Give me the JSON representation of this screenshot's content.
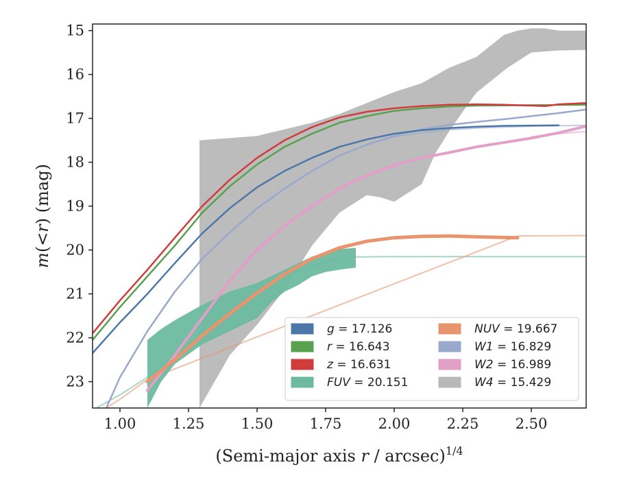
{
  "chart_data": {
    "type": "line",
    "xlabel": "(Semi-major axis r / arcsec)",
    "xlabel_sup": "1/4",
    "ylabel": "m(<r) (mag)",
    "xlim": [
      0.9,
      2.7
    ],
    "ylim": [
      23.6,
      14.85
    ],
    "y_inverted": true,
    "xticks": [
      "1.00",
      "1.25",
      "1.50",
      "1.75",
      "2.00",
      "2.25",
      "2.50"
    ],
    "yticks": [
      "15",
      "16",
      "17",
      "18",
      "19",
      "20",
      "21",
      "22",
      "23"
    ],
    "grid": false,
    "legend_position": "lower-right",
    "series": [
      {
        "band": "g",
        "value": "17.126",
        "color": "#4c78a8",
        "profile": [
          [
            0.9,
            22.35
          ],
          [
            1.0,
            21.65
          ],
          [
            1.1,
            21.0
          ],
          [
            1.2,
            20.3
          ],
          [
            1.3,
            19.62
          ],
          [
            1.4,
            19.05
          ],
          [
            1.5,
            18.57
          ],
          [
            1.6,
            18.2
          ],
          [
            1.7,
            17.9
          ],
          [
            1.8,
            17.65
          ],
          [
            1.9,
            17.48
          ],
          [
            2.0,
            17.35
          ],
          [
            2.1,
            17.27
          ],
          [
            2.2,
            17.22
          ],
          [
            2.3,
            17.19
          ],
          [
            2.4,
            17.17
          ],
          [
            2.6,
            17.16
          ]
        ],
        "model": [
          [
            2.6,
            17.16
          ],
          [
            2.7,
            17.15
          ]
        ]
      },
      {
        "band": "r",
        "value": "16.643",
        "color": "#59a14f",
        "profile": [
          [
            0.9,
            22.05
          ],
          [
            1.0,
            21.3
          ],
          [
            1.1,
            20.6
          ],
          [
            1.2,
            19.9
          ],
          [
            1.3,
            19.15
          ],
          [
            1.4,
            18.55
          ],
          [
            1.5,
            18.05
          ],
          [
            1.6,
            17.65
          ],
          [
            1.7,
            17.35
          ],
          [
            1.8,
            17.1
          ],
          [
            1.9,
            16.95
          ],
          [
            2.0,
            16.83
          ],
          [
            2.1,
            16.77
          ],
          [
            2.2,
            16.73
          ],
          [
            2.3,
            16.71
          ],
          [
            2.5,
            16.7
          ],
          [
            2.7,
            16.69
          ]
        ],
        "model": []
      },
      {
        "band": "z",
        "value": "16.631",
        "color": "#d03c3c",
        "profile": [
          [
            0.9,
            21.9
          ],
          [
            1.0,
            21.15
          ],
          [
            1.1,
            20.45
          ],
          [
            1.2,
            19.72
          ],
          [
            1.3,
            19.0
          ],
          [
            1.4,
            18.4
          ],
          [
            1.5,
            17.9
          ],
          [
            1.6,
            17.5
          ],
          [
            1.7,
            17.2
          ],
          [
            1.8,
            16.98
          ],
          [
            1.9,
            16.85
          ],
          [
            2.0,
            16.77
          ],
          [
            2.1,
            16.72
          ],
          [
            2.2,
            16.69
          ],
          [
            2.3,
            16.68
          ],
          [
            2.4,
            16.69
          ],
          [
            2.5,
            16.71
          ],
          [
            2.55,
            16.72
          ],
          [
            2.6,
            16.68
          ],
          [
            2.7,
            16.65
          ]
        ],
        "model": []
      },
      {
        "band": "FUV",
        "value": "20.151",
        "color": "#6cbb9f",
        "profile_lower": [
          [
            1.1,
            23.6
          ],
          [
            1.15,
            23.0
          ],
          [
            1.2,
            22.6
          ],
          [
            1.3,
            22.15
          ],
          [
            1.4,
            21.85
          ],
          [
            1.5,
            21.55
          ],
          [
            1.55,
            21.2
          ],
          [
            1.6,
            20.95
          ],
          [
            1.65,
            20.8
          ],
          [
            1.7,
            20.6
          ],
          [
            1.75,
            20.5
          ],
          [
            1.8,
            20.45
          ],
          [
            1.86,
            20.4
          ]
        ],
        "profile_upper": [
          [
            1.1,
            22.05
          ],
          [
            1.15,
            21.8
          ],
          [
            1.2,
            21.6
          ],
          [
            1.3,
            21.25
          ],
          [
            1.4,
            20.95
          ],
          [
            1.5,
            20.75
          ],
          [
            1.55,
            20.6
          ],
          [
            1.6,
            20.45
          ],
          [
            1.65,
            20.3
          ],
          [
            1.7,
            20.15
          ],
          [
            1.75,
            20.05
          ],
          [
            1.8,
            19.98
          ],
          [
            1.86,
            19.95
          ]
        ],
        "model": [
          [
            0.9,
            23.65
          ],
          [
            1.0,
            23.3
          ],
          [
            1.1,
            22.9
          ],
          [
            1.2,
            22.4
          ],
          [
            1.3,
            21.9
          ],
          [
            1.4,
            21.4
          ],
          [
            1.5,
            20.95
          ],
          [
            1.6,
            20.6
          ],
          [
            1.7,
            20.35
          ],
          [
            1.8,
            20.2
          ],
          [
            1.86,
            20.16
          ],
          [
            2.0,
            20.15
          ],
          [
            2.7,
            20.15
          ]
        ]
      },
      {
        "band": "NUV",
        "value": "19.667",
        "color": "#e8946f",
        "profile": [
          [
            1.1,
            23.0
          ],
          [
            1.2,
            22.5
          ],
          [
            1.3,
            21.95
          ],
          [
            1.4,
            21.45
          ],
          [
            1.5,
            20.98
          ],
          [
            1.6,
            20.55
          ],
          [
            1.7,
            20.2
          ],
          [
            1.8,
            19.95
          ],
          [
            1.9,
            19.8
          ],
          [
            2.0,
            19.72
          ],
          [
            2.1,
            19.69
          ],
          [
            2.2,
            19.68
          ],
          [
            2.3,
            19.7
          ],
          [
            2.45,
            19.72
          ]
        ],
        "model": [
          [
            0.95,
            23.6
          ],
          [
            1.0,
            23.4
          ],
          [
            1.1,
            22.95
          ],
          [
            2.45,
            19.68
          ],
          [
            2.7,
            19.67
          ]
        ]
      },
      {
        "band": "W1",
        "value": "16.829",
        "color": "#99a8cc",
        "profile": [
          [
            0.95,
            23.6
          ],
          [
            1.0,
            22.9
          ],
          [
            1.1,
            21.85
          ],
          [
            1.2,
            20.95
          ],
          [
            1.3,
            20.2
          ],
          [
            1.4,
            19.6
          ],
          [
            1.5,
            19.05
          ],
          [
            1.6,
            18.6
          ],
          [
            1.7,
            18.2
          ],
          [
            1.8,
            17.85
          ],
          [
            1.9,
            17.6
          ],
          [
            2.0,
            17.4
          ],
          [
            2.1,
            17.25
          ],
          [
            2.2,
            17.15
          ],
          [
            2.3,
            17.08
          ],
          [
            2.4,
            17.02
          ],
          [
            2.5,
            16.95
          ],
          [
            2.6,
            16.88
          ],
          [
            2.7,
            16.8
          ]
        ],
        "model": [
          [
            1.9,
            17.6
          ],
          [
            2.0,
            17.42
          ],
          [
            2.1,
            17.33
          ],
          [
            2.2,
            17.26
          ],
          [
            2.3,
            17.22
          ],
          [
            2.5,
            17.18
          ],
          [
            2.7,
            17.16
          ]
        ]
      },
      {
        "band": "W2",
        "value": "16.989",
        "color": "#e29fc8",
        "profile": [
          [
            1.1,
            23.2
          ],
          [
            1.2,
            22.4
          ],
          [
            1.3,
            21.55
          ],
          [
            1.4,
            20.7
          ],
          [
            1.5,
            20.0
          ],
          [
            1.6,
            19.45
          ],
          [
            1.7,
            19.0
          ],
          [
            1.8,
            18.6
          ],
          [
            1.9,
            18.3
          ],
          [
            2.0,
            18.07
          ],
          [
            2.1,
            17.9
          ],
          [
            2.2,
            17.78
          ],
          [
            2.3,
            17.65
          ],
          [
            2.4,
            17.55
          ],
          [
            2.5,
            17.45
          ],
          [
            2.6,
            17.33
          ],
          [
            2.7,
            17.18
          ]
        ],
        "model": [
          [
            2.5,
            17.42
          ],
          [
            2.6,
            17.35
          ],
          [
            2.7,
            17.3
          ]
        ]
      },
      {
        "band": "W4",
        "value": "15.429",
        "color": "#b8b8b8",
        "profile_lower": [
          [
            1.29,
            23.6
          ],
          [
            1.4,
            22.4
          ],
          [
            1.5,
            21.7
          ],
          [
            1.6,
            20.9
          ],
          [
            1.7,
            19.9
          ],
          [
            1.8,
            19.15
          ],
          [
            1.9,
            18.75
          ],
          [
            1.95,
            18.8
          ],
          [
            2.0,
            18.9
          ],
          [
            2.05,
            18.7
          ],
          [
            2.1,
            18.5
          ],
          [
            2.15,
            17.8
          ],
          [
            2.2,
            17.3
          ],
          [
            2.3,
            16.4
          ],
          [
            2.4,
            15.9
          ],
          [
            2.5,
            15.5
          ],
          [
            2.6,
            15.45
          ],
          [
            2.7,
            15.43
          ]
        ],
        "profile_upper": [
          [
            1.29,
            17.5
          ],
          [
            1.4,
            17.45
          ],
          [
            1.5,
            17.4
          ],
          [
            1.6,
            17.25
          ],
          [
            1.7,
            17.1
          ],
          [
            1.8,
            16.9
          ],
          [
            1.9,
            16.65
          ],
          [
            2.0,
            16.4
          ],
          [
            2.1,
            16.2
          ],
          [
            2.2,
            15.85
          ],
          [
            2.3,
            15.6
          ],
          [
            2.35,
            15.35
          ],
          [
            2.4,
            15.1
          ],
          [
            2.45,
            15.0
          ],
          [
            2.5,
            14.95
          ],
          [
            2.55,
            14.95
          ],
          [
            2.6,
            15.0
          ],
          [
            2.7,
            15.0
          ]
        ],
        "model": [
          [
            2.15,
            17.5
          ],
          [
            2.3,
            16.4
          ],
          [
            2.4,
            15.9
          ],
          [
            2.45,
            15.6
          ],
          [
            2.5,
            15.45
          ],
          [
            2.7,
            15.43
          ]
        ]
      }
    ]
  }
}
